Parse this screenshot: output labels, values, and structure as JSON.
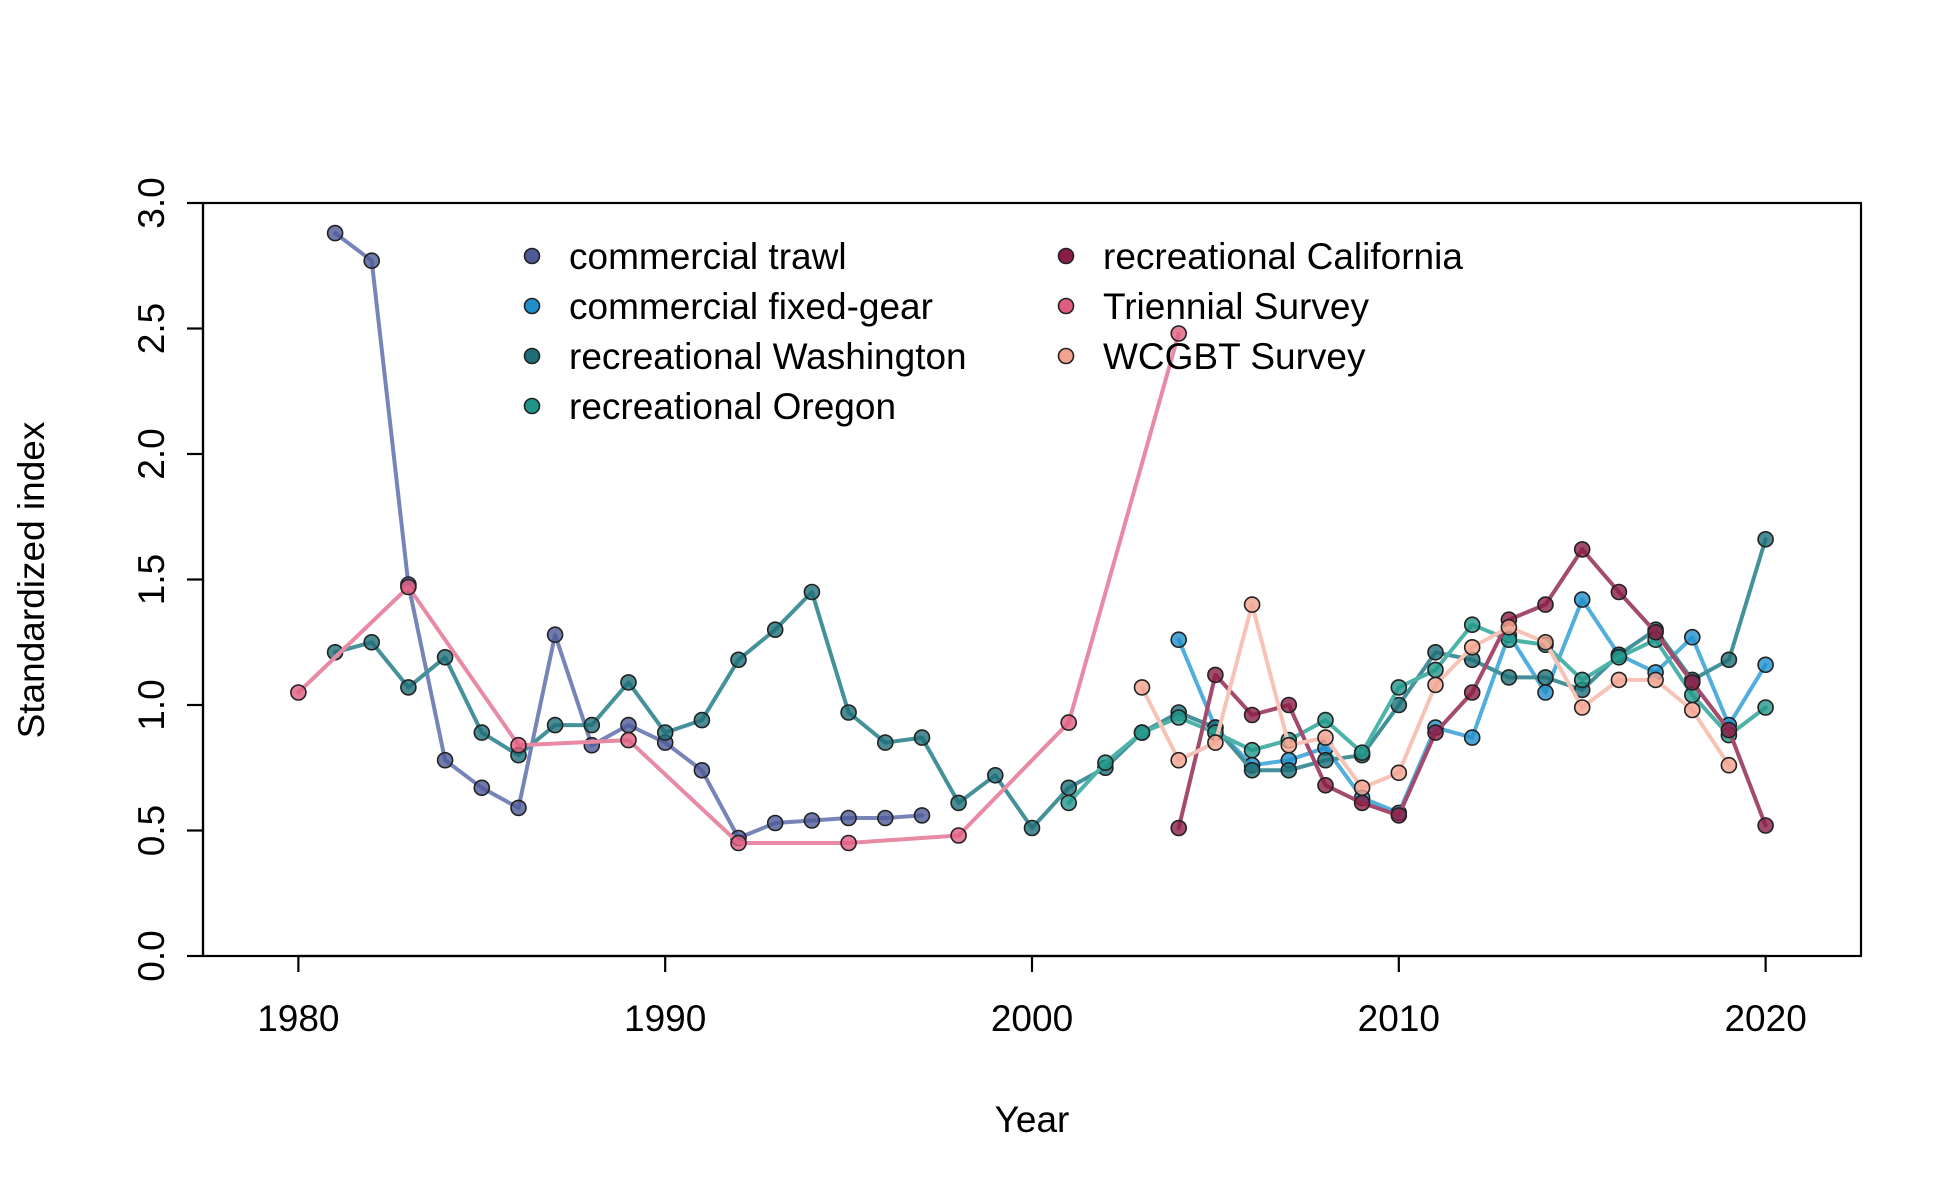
{
  "chart_data": {
    "type": "line",
    "xlabel": "Year",
    "ylabel": "Standardized index",
    "xlim": [
      1977.4,
      2022.6
    ],
    "ylim": [
      0,
      3
    ],
    "xticks": [
      1980,
      1990,
      2000,
      2010,
      2020
    ],
    "yticks": [
      0.0,
      0.5,
      1.0,
      1.5,
      2.0,
      2.5,
      3.0
    ],
    "ytick_labels": [
      "0.0",
      "0.5",
      "1.0",
      "1.5",
      "2.0",
      "2.5",
      "3.0"
    ],
    "legend_position": "top",
    "series": [
      {
        "name": "commercial trawl",
        "color": "#4c5a97",
        "line_color": "#7784b8",
        "x": [
          1981,
          1982,
          1983,
          1984,
          1985,
          1986,
          1987,
          1988,
          1989,
          1990,
          1991,
          1992,
          1993,
          1994,
          1995,
          1996,
          1997
        ],
        "values": [
          2.88,
          2.77,
          1.48,
          0.78,
          0.67,
          0.59,
          1.28,
          0.84,
          0.92,
          0.85,
          0.74,
          0.47,
          0.53,
          0.54,
          0.55,
          0.55,
          0.56
        ]
      },
      {
        "name": "commercial fixed-gear",
        "color": "#1f8fcc",
        "line_color": "#52aedc",
        "x": [
          2004,
          2005,
          2006,
          2007,
          2008,
          2009,
          2010,
          2011,
          2012,
          2013,
          2014,
          2015,
          2016,
          2017,
          2018,
          2019,
          2020
        ],
        "values": [
          1.26,
          0.91,
          0.76,
          0.78,
          0.83,
          0.63,
          0.57,
          0.91,
          0.87,
          1.28,
          1.05,
          1.42,
          1.2,
          1.13,
          1.27,
          0.92,
          1.16
        ]
      },
      {
        "name": "recreational Washington",
        "color": "#1e6e78",
        "line_color": "#44919a",
        "x": [
          1981,
          1982,
          1983,
          1984,
          1985,
          1986,
          1987,
          1988,
          1989,
          1990,
          1991,
          1992,
          1993,
          1994,
          1995,
          1996,
          1997,
          1998,
          1999,
          2000,
          2001,
          2002,
          2003,
          2004,
          2005,
          2006,
          2007,
          2008,
          2009,
          2010,
          2011,
          2012,
          2013,
          2014,
          2015,
          2016,
          2017,
          2018,
          2019,
          2020
        ],
        "values": [
          1.21,
          1.25,
          1.07,
          1.19,
          0.89,
          0.8,
          0.92,
          0.92,
          1.09,
          0.89,
          0.94,
          1.18,
          1.3,
          1.45,
          0.97,
          0.85,
          0.87,
          0.61,
          0.72,
          0.51,
          0.67,
          0.75,
          0.89,
          0.97,
          0.91,
          0.74,
          0.74,
          0.78,
          0.8,
          1.0,
          1.21,
          1.18,
          1.11,
          1.11,
          1.06,
          1.2,
          1.3,
          1.1,
          1.18,
          1.66
        ]
      },
      {
        "name": "recreational Oregon",
        "color": "#20968a",
        "line_color": "#4db3a8",
        "x": [
          2001,
          2002,
          2003,
          2004,
          2005,
          2006,
          2007,
          2008,
          2009,
          2010,
          2011,
          2012,
          2013,
          2014,
          2015,
          2016,
          2017,
          2018,
          2019,
          2020
        ],
        "values": [
          0.61,
          0.77,
          0.89,
          0.95,
          0.89,
          0.82,
          0.86,
          0.94,
          0.81,
          1.07,
          1.14,
          1.32,
          1.26,
          1.24,
          1.1,
          1.19,
          1.26,
          1.04,
          0.88,
          0.99
        ]
      },
      {
        "name": "recreational California",
        "color": "#8a1d46",
        "line_color": "#a44a6c",
        "x": [
          2004,
          2005,
          2006,
          2007,
          2008,
          2009,
          2010,
          2011,
          2012,
          2013,
          2014,
          2015,
          2016,
          2017,
          2018,
          2019,
          2020
        ],
        "values": [
          0.51,
          1.12,
          0.96,
          1.0,
          0.68,
          0.61,
          0.56,
          0.89,
          1.05,
          1.34,
          1.4,
          1.62,
          1.45,
          1.29,
          1.09,
          0.9,
          0.52
        ]
      },
      {
        "name": "Triennial Survey",
        "color": "#e05d80",
        "line_color": "#e88aa3",
        "x": [
          1980,
          1983,
          1986,
          1989,
          1992,
          1995,
          1998,
          2001,
          2004
        ],
        "values": [
          1.05,
          1.47,
          0.84,
          0.86,
          0.45,
          0.45,
          0.48,
          0.93,
          2.48
        ]
      },
      {
        "name": "WCGBT Survey",
        "color": "#f3a28f",
        "line_color": "#f8c3b6",
        "x": [
          2003,
          2004,
          2005,
          2006,
          2007,
          2008,
          2009,
          2010,
          2011,
          2012,
          2013,
          2014,
          2015,
          2016,
          2017,
          2018,
          2019
        ],
        "values": [
          1.07,
          0.78,
          0.85,
          1.4,
          0.84,
          0.87,
          0.67,
          0.73,
          1.08,
          1.23,
          1.31,
          1.25,
          0.99,
          1.1,
          1.1,
          0.98,
          0.76
        ]
      }
    ]
  }
}
